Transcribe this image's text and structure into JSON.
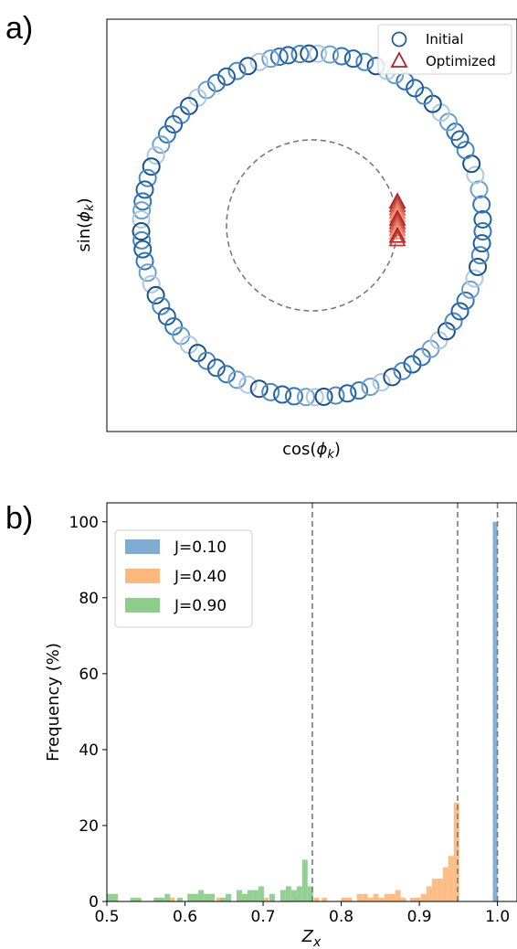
{
  "panel_labels": {
    "a": "a)",
    "b": "b)"
  },
  "colors": {
    "initial": "#1f5fa6",
    "optimized": "#b0202a",
    "j010": "#7eacd3",
    "j040": "#fdb97d",
    "j090": "#8dce8d",
    "dashed": "#7a7a7a"
  },
  "chart_data": [
    {
      "type": "scatter",
      "title": "",
      "xlabel": "cos(φ_k)",
      "ylabel": "sin(φ_k)",
      "xlim": [
        -1.2,
        1.2
      ],
      "ylim": [
        -1.2,
        1.2
      ],
      "grid": false,
      "legend_position": "top-right",
      "ticks_visible": false,
      "reference_circle": {
        "radius": 0.5,
        "style": "dashed"
      },
      "series": [
        {
          "name": "Initial",
          "marker": "circle",
          "radius": 1.0,
          "angles_deg": [
            2,
            7,
            12,
            17,
            21,
            26,
            30,
            33,
            37,
            41,
            45,
            49,
            53,
            57,
            61,
            64,
            68,
            72,
            76,
            80,
            84,
            88,
            91,
            94,
            98,
            101,
            104,
            108,
            112,
            116,
            120,
            124,
            128,
            132,
            136,
            140,
            144,
            148,
            152,
            156,
            160,
            164,
            168,
            172,
            175,
            178,
            182,
            185,
            188,
            192,
            196,
            200,
            204,
            208,
            212,
            216,
            220,
            224,
            228,
            232,
            236,
            240,
            244,
            248,
            252,
            256,
            260,
            264,
            268,
            271,
            274,
            278,
            282,
            286,
            290,
            294,
            298,
            302,
            306,
            310,
            314,
            318,
            322,
            326,
            330,
            334,
            338,
            342,
            346,
            350,
            354,
            358
          ]
        },
        {
          "name": "Optimized",
          "marker": "triangle",
          "x": [
            0.5,
            0.5,
            0.5,
            0.5,
            0.5,
            0.5,
            0.5,
            0.5,
            0.5,
            0.5,
            0.5,
            0.5
          ],
          "y": [
            0.14,
            0.12,
            0.1,
            0.08,
            0.06,
            0.04,
            0.02,
            0.0,
            -0.02,
            -0.04,
            -0.06,
            -0.08
          ]
        }
      ]
    },
    {
      "type": "bar",
      "title": "",
      "xlabel": "Z_x",
      "ylabel": "Frequency (%)",
      "xlim": [
        0.5,
        1.025
      ],
      "ylim": [
        0,
        105
      ],
      "xticks": [
        "0.5",
        "0.6",
        "0.7",
        "0.8",
        "0.9",
        "1.0"
      ],
      "yticks": [
        "0",
        "20",
        "40",
        "60",
        "80",
        "100"
      ],
      "grid": false,
      "legend_position": "top-left",
      "vlines": [
        0.763,
        0.949,
        1.0
      ],
      "series": [
        {
          "name": "J=0.10",
          "bins": [
            [
              0.994,
              1.0,
              100
            ]
          ]
        },
        {
          "name": "J=0.40",
          "bins": [
            [
              0.56,
              0.567,
              1
            ],
            [
              0.58,
              0.587,
              1
            ],
            [
              0.64,
              0.647,
              1
            ],
            [
              0.7,
              0.707,
              1
            ],
            [
              0.74,
              0.747,
              1
            ],
            [
              0.765,
              0.772,
              1
            ],
            [
              0.775,
              0.782,
              1
            ],
            [
              0.8,
              0.807,
              1
            ],
            [
              0.807,
              0.814,
              1
            ],
            [
              0.82,
              0.827,
              2
            ],
            [
              0.827,
              0.834,
              2
            ],
            [
              0.834,
              0.841,
              1
            ],
            [
              0.841,
              0.848,
              2
            ],
            [
              0.848,
              0.855,
              1
            ],
            [
              0.855,
              0.862,
              2
            ],
            [
              0.862,
              0.869,
              2
            ],
            [
              0.869,
              0.876,
              3
            ],
            [
              0.876,
              0.883,
              1
            ],
            [
              0.888,
              0.895,
              1
            ],
            [
              0.895,
              0.902,
              1
            ],
            [
              0.902,
              0.909,
              2
            ],
            [
              0.909,
              0.916,
              4
            ],
            [
              0.916,
              0.923,
              6
            ],
            [
              0.923,
              0.93,
              6
            ],
            [
              0.93,
              0.937,
              9
            ],
            [
              0.937,
              0.944,
              12
            ],
            [
              0.944,
              0.951,
              26
            ]
          ]
        },
        {
          "name": "J=0.90",
          "bins": [
            [
              0.5,
              0.507,
              2
            ],
            [
              0.507,
              0.514,
              2
            ],
            [
              0.53,
              0.537,
              1
            ],
            [
              0.537,
              0.544,
              1
            ],
            [
              0.56,
              0.567,
              1
            ],
            [
              0.567,
              0.574,
              1
            ],
            [
              0.574,
              0.581,
              2
            ],
            [
              0.59,
              0.597,
              1
            ],
            [
              0.603,
              0.61,
              2
            ],
            [
              0.61,
              0.617,
              2
            ],
            [
              0.617,
              0.624,
              3
            ],
            [
              0.624,
              0.631,
              2
            ],
            [
              0.631,
              0.638,
              2
            ],
            [
              0.645,
              0.652,
              1
            ],
            [
              0.652,
              0.659,
              2
            ],
            [
              0.666,
              0.673,
              3
            ],
            [
              0.673,
              0.68,
              2
            ],
            [
              0.68,
              0.687,
              3
            ],
            [
              0.687,
              0.694,
              3
            ],
            [
              0.694,
              0.701,
              4
            ],
            [
              0.708,
              0.715,
              2
            ],
            [
              0.722,
              0.729,
              3
            ],
            [
              0.729,
              0.736,
              4
            ],
            [
              0.736,
              0.743,
              3
            ],
            [
              0.743,
              0.75,
              4
            ],
            [
              0.75,
              0.757,
              11
            ],
            [
              0.757,
              0.764,
              4
            ]
          ]
        }
      ]
    }
  ]
}
